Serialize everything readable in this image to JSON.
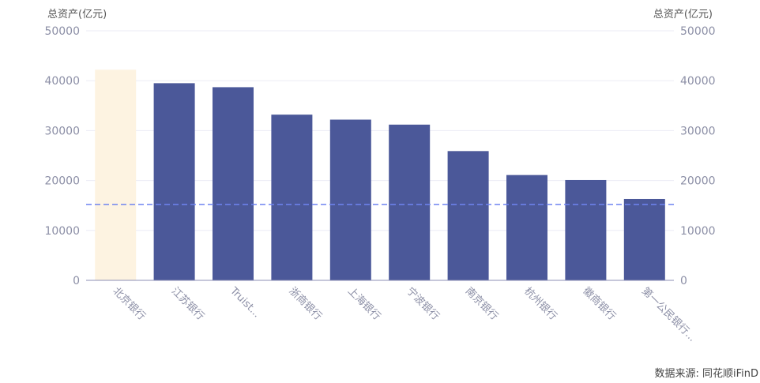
{
  "chart_data": {
    "type": "bar",
    "categories": [
      "北京银行",
      "江苏银行",
      "Truist...",
      "浙商银行",
      "上海银行",
      "宁波银行",
      "南京银行",
      "杭州银行",
      "徽商银行",
      "第一公民银行..."
    ],
    "values": [
      42200,
      39500,
      38700,
      33200,
      32200,
      31200,
      25900,
      21100,
      20100,
      16300
    ],
    "highlight_index": 0,
    "reference_line": 15200,
    "ylabel_left": "总资产(亿元)",
    "ylabel_right": "总资产(亿元)",
    "ylim": [
      0,
      50000
    ],
    "yticks": [
      "0",
      "10000",
      "20000",
      "30000",
      "40000",
      "50000"
    ],
    "grid": true,
    "colors": {
      "bar": "#4b5899",
      "highlight": "#fdf3e1",
      "reference_line": "#6f84f0",
      "grid": "#ebebf5",
      "axis": "#8c8fb5",
      "text": "#8c8fa6"
    }
  },
  "source": "数据来源: 同花顺iFinD"
}
